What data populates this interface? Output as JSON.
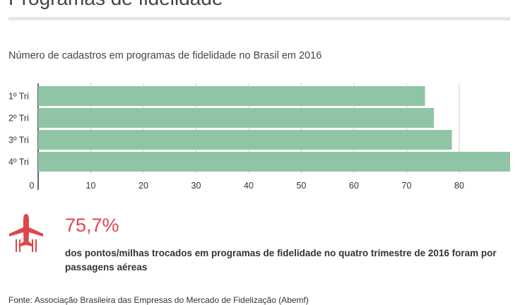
{
  "header": {
    "title": "Programas de fidelidade",
    "subtitle": "Número de cadastros em programas de fidelidade no Brasil em 2016"
  },
  "chart_data": {
    "type": "bar",
    "orientation": "horizontal",
    "title": "",
    "subtitle": "Número de cadastros em programas de fidelidade no Brasil em 2016",
    "categories": [
      "1º Tri",
      "2º Tri",
      "3º Tri",
      "4º Tri"
    ],
    "values": [
      73.5,
      75.2,
      78.6,
      90.5
    ],
    "xlim": [
      0,
      90
    ],
    "xticks": [
      0,
      10,
      20,
      30,
      40,
      50,
      60,
      70,
      80
    ],
    "xlabel": "",
    "ylabel": "",
    "grid": true,
    "colors": {
      "bar": "#8fc5a5",
      "grid": "#cccccc",
      "axis": "#333333"
    }
  },
  "stat": {
    "icon": "airplane-icon",
    "value": "75,7%",
    "text": "dos pontos/milhas trocados em programas de fidelidade no quatro trimestre de 2016 foram por passagens aéreas",
    "color": "#e0464a"
  },
  "footer": {
    "source": "Fonte: Associação Brasileira das Empresas do Mercado de Fidelização (Abemf)"
  }
}
